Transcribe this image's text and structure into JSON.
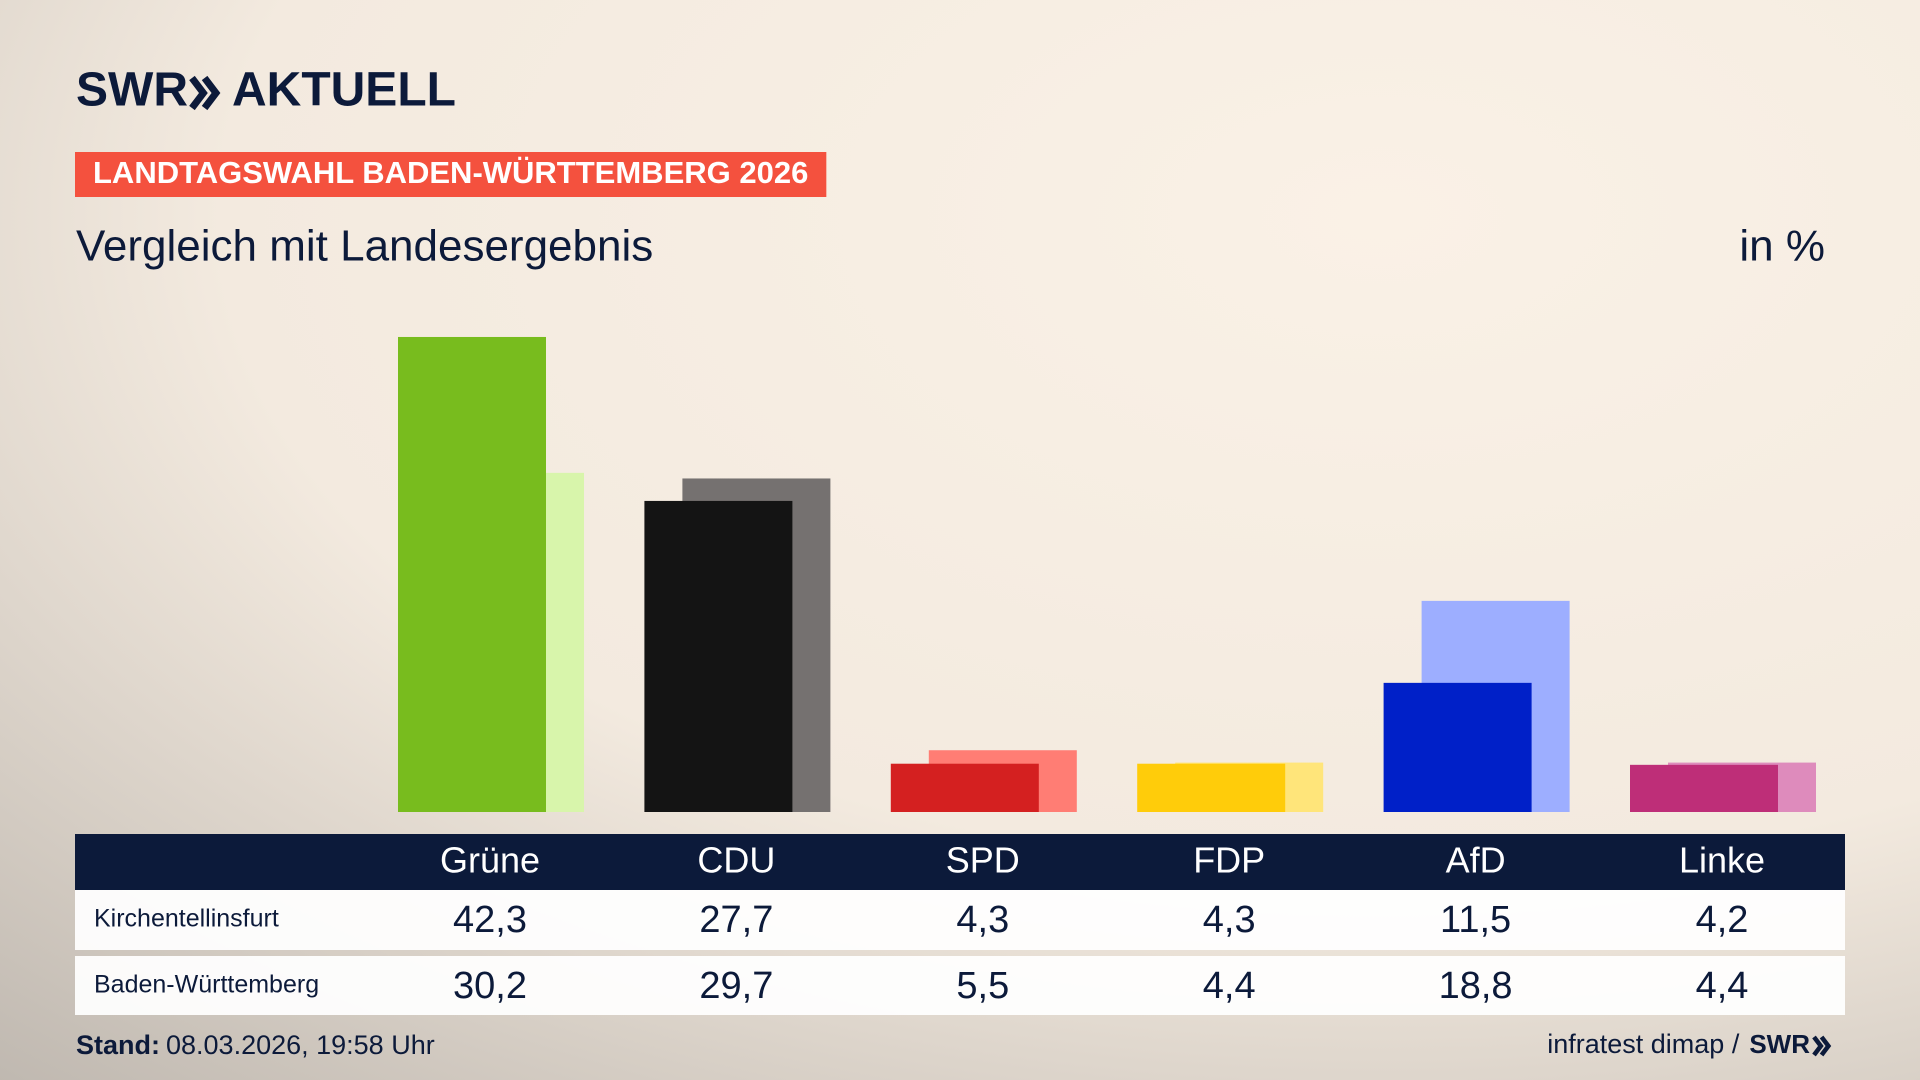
{
  "header": {
    "brand": "SWR",
    "product": "AKTUELL",
    "banner": "LANDTAGSWAHL BADEN-WÜRTTEMBERG 2026"
  },
  "chart_data": {
    "type": "bar",
    "title": "Vergleich mit Landesergebnis",
    "unit_label": "in %",
    "categories": [
      "Grüne",
      "CDU",
      "SPD",
      "FDP",
      "AfD",
      "Linke"
    ],
    "series": [
      {
        "name": "Kirchentellinsfurt",
        "values": [
          42.3,
          27.7,
          4.3,
          4.3,
          11.5,
          4.2
        ],
        "value_labels": [
          "42,3",
          "27,7",
          "4,3",
          "4,3",
          "11,5",
          "4,2"
        ],
        "colors": [
          "#78bc1e",
          "#141414",
          "#d42020",
          "#ffcc0a",
          "#0020c8",
          "#be2e78"
        ]
      },
      {
        "name": "Baden-Württemberg",
        "values": [
          30.2,
          29.7,
          5.5,
          4.4,
          18.8,
          4.4
        ],
        "value_labels": [
          "30,2",
          "29,7",
          "5,5",
          "4,4",
          "18,8",
          "4,4"
        ],
        "colors": [
          "#d8f5ab",
          "#757170",
          "#ff7d74",
          "#ffe57a",
          "#9daeff",
          "#de8bbc"
        ]
      }
    ]
  },
  "footer": {
    "stand_label": "Stand:",
    "stand": "08.03.2026, 19:58 Uhr",
    "source": "infratest dimap /",
    "source_brand": "SWR"
  }
}
